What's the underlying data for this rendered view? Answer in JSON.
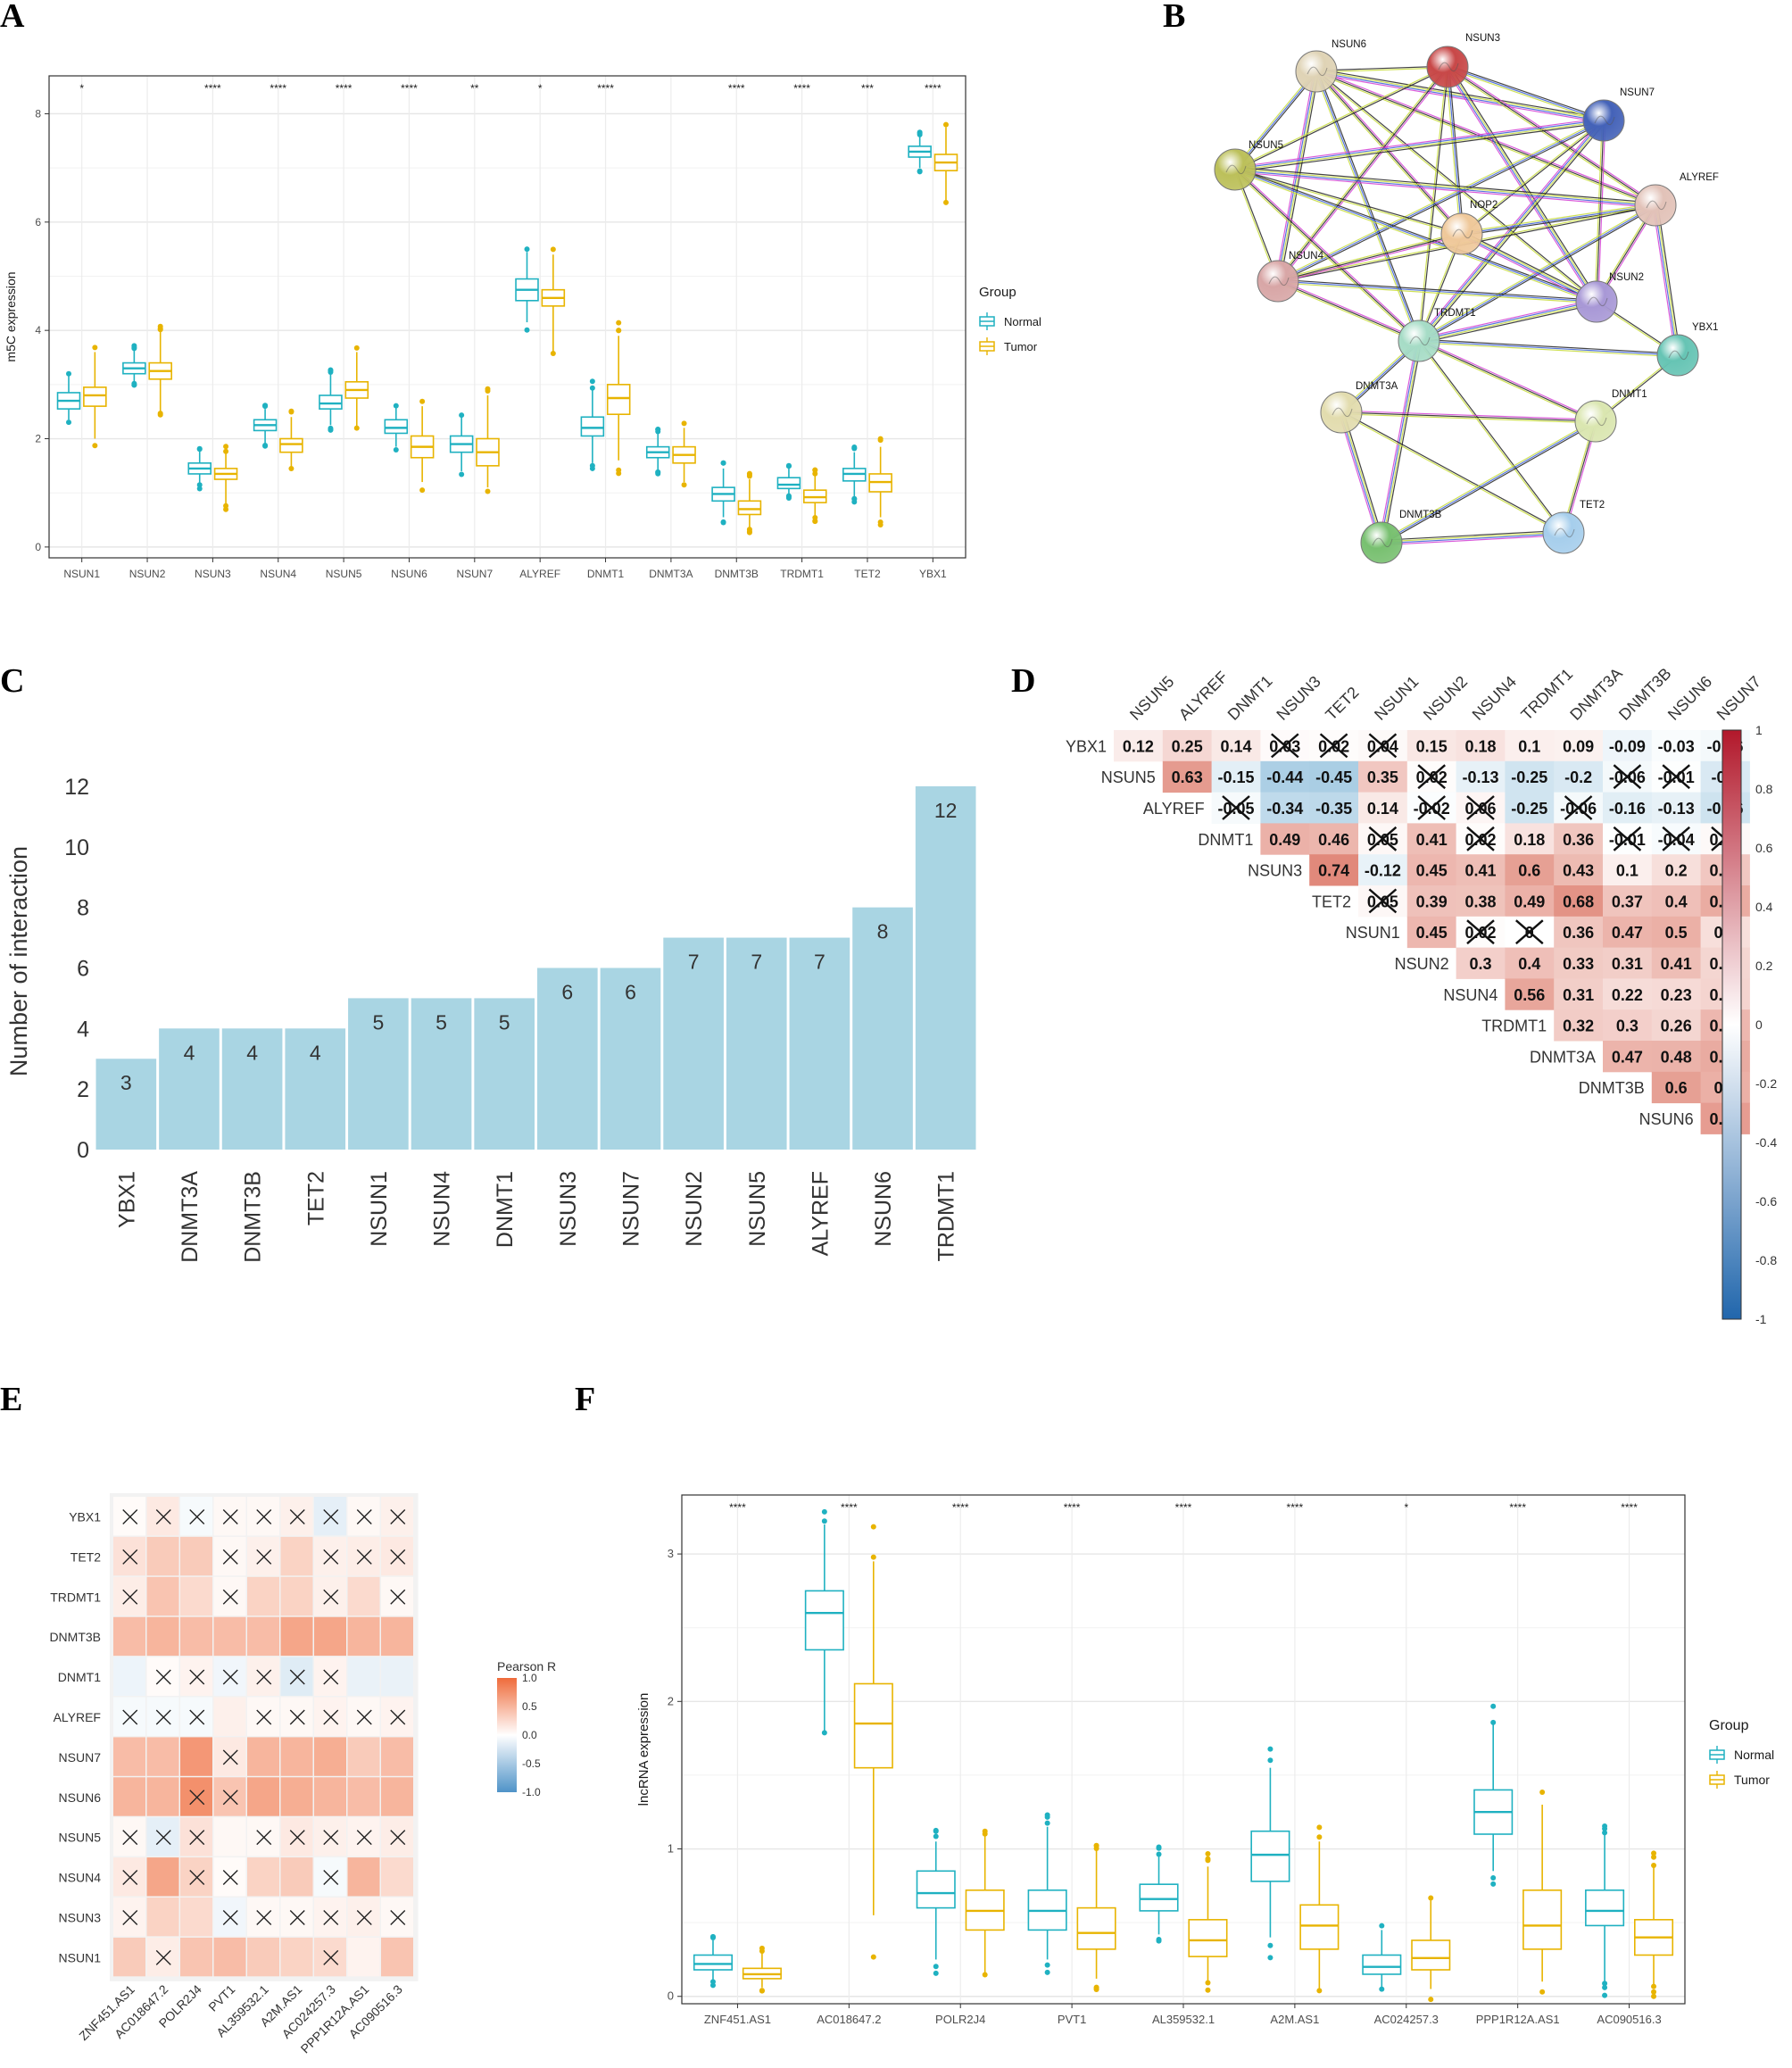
{
  "panels": {
    "A": "A",
    "B": "B",
    "C": "C",
    "D": "D",
    "E": "E",
    "F": "F"
  },
  "colors": {
    "normal": "#1fb1c1",
    "tumor": "#e8b400",
    "bar": "#a9d5e3",
    "corr_pos": "#d6604d",
    "corr_neg": "#4393c3",
    "pearson_pos": "#f4a582",
    "pearson_neg": "#92c5de"
  },
  "chart_data": [
    {
      "id": "A",
      "type": "box",
      "ylabel": "m5C expression",
      "ylim": [
        -0.2,
        8.7
      ],
      "yticks": [
        0,
        2,
        4,
        6,
        8
      ],
      "legend": {
        "title": "Group",
        "items": [
          "Normal",
          "Tumor"
        ],
        "position": "right"
      },
      "categories": [
        "NSUN1",
        "NSUN2",
        "NSUN3",
        "NSUN4",
        "NSUN5",
        "NSUN6",
        "NSUN7",
        "ALYREF",
        "DNMT1",
        "DNMT3A",
        "DNMT3B",
        "TRDMT1",
        "TET2",
        "YBX1"
      ],
      "significance": [
        "*",
        "",
        "****",
        "****",
        "****",
        "****",
        "**",
        "*",
        "****",
        "",
        "****",
        "****",
        "***",
        "****"
      ],
      "series": [
        {
          "name": "Normal",
          "boxes": [
            [
              2.35,
              2.55,
              2.7,
              2.85,
              3.2
            ],
            [
              3.05,
              3.2,
              3.3,
              3.4,
              3.65
            ],
            [
              1.15,
              1.35,
              1.45,
              1.55,
              1.8
            ],
            [
              1.9,
              2.15,
              2.25,
              2.35,
              2.55
            ],
            [
              2.25,
              2.55,
              2.65,
              2.8,
              3.2
            ],
            [
              1.85,
              2.1,
              2.2,
              2.35,
              2.6
            ],
            [
              1.4,
              1.75,
              1.9,
              2.05,
              2.4
            ],
            [
              4.15,
              4.55,
              4.75,
              4.95,
              5.45
            ],
            [
              1.55,
              2.05,
              2.2,
              2.4,
              2.9
            ],
            [
              1.4,
              1.65,
              1.75,
              1.85,
              2.1
            ],
            [
              0.55,
              0.85,
              0.98,
              1.1,
              1.45
            ],
            [
              0.95,
              1.08,
              1.15,
              1.28,
              1.45
            ],
            [
              0.9,
              1.22,
              1.35,
              1.45,
              1.75
            ],
            [
              7.0,
              7.2,
              7.3,
              7.4,
              7.6
            ]
          ]
        },
        {
          "name": "Tumor",
          "boxes": [
            [
              2.0,
              2.6,
              2.8,
              2.95,
              3.6
            ],
            [
              2.5,
              3.1,
              3.25,
              3.4,
              4.0
            ],
            [
              0.8,
              1.25,
              1.35,
              1.45,
              1.75
            ],
            [
              1.45,
              1.75,
              1.9,
              2.0,
              2.4
            ],
            [
              2.2,
              2.75,
              2.9,
              3.05,
              3.6
            ],
            [
              1.2,
              1.65,
              1.85,
              2.05,
              2.6
            ],
            [
              1.1,
              1.5,
              1.75,
              2.0,
              2.8
            ],
            [
              3.6,
              4.45,
              4.6,
              4.75,
              5.4
            ],
            [
              1.6,
              2.45,
              2.75,
              3.0,
              3.9
            ],
            [
              1.2,
              1.55,
              1.7,
              1.85,
              2.2
            ],
            [
              0.35,
              0.6,
              0.7,
              0.85,
              1.25
            ],
            [
              0.55,
              0.82,
              0.92,
              1.05,
              1.35
            ],
            [
              0.55,
              1.02,
              1.2,
              1.35,
              1.85
            ],
            [
              6.4,
              6.95,
              7.1,
              7.25,
              7.75
            ]
          ]
        }
      ]
    },
    {
      "id": "B",
      "type": "network",
      "nodes": [
        {
          "label": "NSUN6",
          "color": "#dfd3b5"
        },
        {
          "label": "NSUN3",
          "color": "#c84848"
        },
        {
          "label": "NSUN7",
          "color": "#4462b8"
        },
        {
          "label": "NSUN5",
          "color": "#bcc05a"
        },
        {
          "label": "ALYREF",
          "color": "#e2c2b8"
        },
        {
          "label": "NOP2",
          "color": "#efc89a"
        },
        {
          "label": "NSUN4",
          "color": "#d8a6a6"
        },
        {
          "label": "NSUN2",
          "color": "#a898d6"
        },
        {
          "label": "TRDMT1",
          "color": "#a6dcc6"
        },
        {
          "label": "YBX1",
          "color": "#66c4b4"
        },
        {
          "label": "DNMT3A",
          "color": "#e2dcae"
        },
        {
          "label": "DNMT1",
          "color": "#dae6b0"
        },
        {
          "label": "DNMT3B",
          "color": "#78c070"
        },
        {
          "label": "TET2",
          "color": "#a6ceec"
        }
      ]
    },
    {
      "id": "C",
      "type": "bar",
      "ylabel": "Number of interaction",
      "ylim": [
        0,
        12.5
      ],
      "yticks": [
        0,
        2,
        4,
        6,
        8,
        10,
        12
      ],
      "categories": [
        "YBX1",
        "DNMT3A",
        "DNMT3B",
        "TET2",
        "NSUN1",
        "NSUN4",
        "DNMT1",
        "NSUN3",
        "NSUN7",
        "NSUN2",
        "NSUN5",
        "ALYREF",
        "NSUN6",
        "TRDMT1"
      ],
      "values": [
        3,
        4,
        4,
        4,
        5,
        5,
        5,
        6,
        6,
        7,
        7,
        7,
        8,
        12
      ]
    },
    {
      "id": "D",
      "type": "heatmap",
      "rows": [
        "YBX1",
        "NSUN5",
        "ALYREF",
        "DNMT1",
        "NSUN3",
        "TET2",
        "NSUN1",
        "NSUN2",
        "NSUN4",
        "TRDMT1",
        "DNMT3A",
        "DNMT3B",
        "NSUN6"
      ],
      "cols": [
        "NSUN5",
        "ALYREF",
        "DNMT1",
        "NSUN3",
        "TET2",
        "NSUN1",
        "NSUN2",
        "NSUN4",
        "TRDMT1",
        "DNMT3A",
        "DNMT3B",
        "NSUN6",
        "NSUN7"
      ],
      "values": [
        [
          0.12,
          0.25,
          0.14,
          0.03,
          0.02,
          0.04,
          0.15,
          0.18,
          0.1,
          0.09,
          -0.09,
          -0.03,
          -0.06
        ],
        [
          null,
          0.63,
          -0.15,
          -0.44,
          -0.45,
          0.35,
          0.02,
          -0.13,
          -0.25,
          -0.2,
          -0.06,
          -0.01,
          -0.2
        ],
        [
          null,
          null,
          -0.05,
          -0.34,
          -0.35,
          0.14,
          -0.02,
          0.06,
          -0.25,
          -0.06,
          -0.16,
          -0.13,
          -0.26
        ],
        [
          null,
          null,
          null,
          0.49,
          0.46,
          0.05,
          0.41,
          0.02,
          0.18,
          0.36,
          -0.01,
          -0.04,
          0.04
        ],
        [
          null,
          null,
          null,
          null,
          0.74,
          -0.12,
          0.45,
          0.41,
          0.6,
          0.43,
          0.1,
          0.2,
          0.35
        ],
        [
          null,
          null,
          null,
          null,
          null,
          0.05,
          0.39,
          0.38,
          0.49,
          0.68,
          0.37,
          0.4,
          0.52
        ],
        [
          null,
          null,
          null,
          null,
          null,
          null,
          0.45,
          0.02,
          0,
          0.36,
          0.47,
          0.5,
          0.2
        ],
        [
          null,
          null,
          null,
          null,
          null,
          null,
          null,
          0.3,
          0.4,
          0.33,
          0.31,
          0.41,
          0.26
        ],
        [
          null,
          null,
          null,
          null,
          null,
          null,
          null,
          null,
          0.56,
          0.31,
          0.22,
          0.23,
          0.27
        ],
        [
          null,
          null,
          null,
          null,
          null,
          null,
          null,
          null,
          null,
          0.32,
          0.3,
          0.26,
          0.45
        ],
        [
          null,
          null,
          null,
          null,
          null,
          null,
          null,
          null,
          null,
          null,
          0.47,
          0.48,
          0.53
        ],
        [
          null,
          null,
          null,
          null,
          null,
          null,
          null,
          null,
          null,
          null,
          null,
          0.6,
          0.5
        ],
        [
          null,
          null,
          null,
          null,
          null,
          null,
          null,
          null,
          null,
          null,
          null,
          null,
          0.62
        ]
      ],
      "crossed": [
        [
          0,
          3
        ],
        [
          0,
          4
        ],
        [
          0,
          5
        ],
        [
          1,
          6
        ],
        [
          1,
          10
        ],
        [
          1,
          11
        ],
        [
          2,
          2
        ],
        [
          2,
          6
        ],
        [
          2,
          7
        ],
        [
          2,
          9
        ],
        [
          3,
          5
        ],
        [
          3,
          7
        ],
        [
          3,
          10
        ],
        [
          3,
          11
        ],
        [
          3,
          12
        ],
        [
          5,
          5
        ],
        [
          6,
          7
        ],
        [
          6,
          8
        ]
      ],
      "colorbar": {
        "ticks": [
          "1",
          "0.8",
          "0.6",
          "0.4",
          "0.2",
          "0",
          "-0.2",
          "-0.4",
          "-0.6",
          "-0.8",
          "-1"
        ]
      }
    },
    {
      "id": "E",
      "type": "heatmap",
      "rows": [
        "YBX1",
        "TET2",
        "TRDMT1",
        "DNMT3B",
        "DNMT1",
        "ALYREF",
        "NSUN7",
        "NSUN6",
        "NSUN5",
        "NSUN4",
        "NSUN3",
        "NSUN1"
      ],
      "cols": [
        "ZNF451.AS1",
        "AC018647.2",
        "POLR2J4",
        "PVT1",
        "AL359532.1",
        "A2M.AS1",
        "AC024257.3",
        "PPP1R12A.AS1",
        "AC090516.3"
      ],
      "values": [
        [
          0.03,
          0.15,
          -0.05,
          0.05,
          0.05,
          0.1,
          -0.15,
          0.05,
          0.1
        ],
        [
          0.2,
          0.35,
          0.35,
          0.05,
          0.1,
          0.3,
          0.1,
          0.12,
          0.15
        ],
        [
          0.12,
          0.4,
          0.25,
          0.05,
          0.3,
          0.3,
          0.1,
          0.25,
          0.05
        ],
        [
          0.45,
          0.5,
          0.45,
          0.45,
          0.45,
          0.6,
          0.6,
          0.5,
          0.5
        ],
        [
          -0.1,
          0.03,
          0.08,
          -0.08,
          0.1,
          -0.18,
          0.08,
          -0.12,
          -0.12
        ],
        [
          -0.05,
          -0.05,
          -0.05,
          0.1,
          0.05,
          0.05,
          0.08,
          0.05,
          0.08
        ],
        [
          0.45,
          0.45,
          0.7,
          0.15,
          0.5,
          0.5,
          0.55,
          0.35,
          0.45
        ],
        [
          0.5,
          0.5,
          0.75,
          0.4,
          0.6,
          0.55,
          0.5,
          0.45,
          0.5
        ],
        [
          0.05,
          -0.15,
          0.2,
          0.05,
          0.05,
          0.15,
          0.1,
          0.08,
          0.12
        ],
        [
          0.15,
          0.6,
          0.3,
          0.03,
          0.3,
          0.35,
          -0.05,
          0.5,
          0.25
        ],
        [
          0.08,
          0.3,
          0.25,
          -0.08,
          0.05,
          0.05,
          0.08,
          0.1,
          0.05
        ],
        [
          0.35,
          0.12,
          0.4,
          0.45,
          0.35,
          0.3,
          0.25,
          0.08,
          0.4
        ]
      ],
      "crossed": [
        [
          0,
          0
        ],
        [
          0,
          1
        ],
        [
          0,
          2
        ],
        [
          0,
          3
        ],
        [
          0,
          4
        ],
        [
          0,
          5
        ],
        [
          0,
          6
        ],
        [
          0,
          7
        ],
        [
          0,
          8
        ],
        [
          1,
          0
        ],
        [
          1,
          3
        ],
        [
          1,
          4
        ],
        [
          1,
          6
        ],
        [
          1,
          7
        ],
        [
          1,
          8
        ],
        [
          2,
          0
        ],
        [
          2,
          3
        ],
        [
          2,
          6
        ],
        [
          2,
          8
        ],
        [
          4,
          1
        ],
        [
          4,
          2
        ],
        [
          4,
          3
        ],
        [
          4,
          4
        ],
        [
          4,
          5
        ],
        [
          4,
          6
        ],
        [
          5,
          0
        ],
        [
          5,
          1
        ],
        [
          5,
          2
        ],
        [
          5,
          4
        ],
        [
          5,
          5
        ],
        [
          5,
          6
        ],
        [
          5,
          7
        ],
        [
          5,
          8
        ],
        [
          6,
          3
        ],
        [
          7,
          2
        ],
        [
          7,
          3
        ],
        [
          8,
          0
        ],
        [
          8,
          1
        ],
        [
          8,
          2
        ],
        [
          8,
          4
        ],
        [
          8,
          5
        ],
        [
          8,
          6
        ],
        [
          8,
          7
        ],
        [
          8,
          8
        ],
        [
          9,
          0
        ],
        [
          9,
          2
        ],
        [
          9,
          3
        ],
        [
          9,
          6
        ],
        [
          10,
          0
        ],
        [
          10,
          3
        ],
        [
          10,
          4
        ],
        [
          10,
          5
        ],
        [
          10,
          6
        ],
        [
          10,
          7
        ],
        [
          10,
          8
        ],
        [
          11,
          1
        ],
        [
          11,
          6
        ]
      ],
      "legend": {
        "title": "Pearson R",
        "ticks": [
          "1.0",
          "0.5",
          "0.0",
          "-0.5",
          "-1.0"
        ]
      }
    },
    {
      "id": "F",
      "type": "box",
      "ylabel": "lncRNA expression",
      "ylim": [
        -0.05,
        3.4
      ],
      "yticks": [
        0,
        1,
        2,
        3
      ],
      "legend": {
        "title": "Group",
        "items": [
          "Normal",
          "Tumor"
        ],
        "position": "right"
      },
      "categories": [
        "ZNF451.AS1",
        "AC018647.2",
        "POLR2J4",
        "PVT1",
        "AL359532.1",
        "A2M.AS1",
        "AC024257.3",
        "PPP1R12A.AS1",
        "AC090516.3"
      ],
      "significance": [
        "****",
        "****",
        "****",
        "****",
        "****",
        "****",
        "*",
        "****",
        "****"
      ],
      "series": [
        {
          "name": "Normal",
          "boxes": [
            [
              0.1,
              0.18,
              0.22,
              0.28,
              0.38
            ],
            [
              1.8,
              2.35,
              2.6,
              2.75,
              3.2
            ],
            [
              0.25,
              0.6,
              0.7,
              0.85,
              1.05
            ],
            [
              0.25,
              0.45,
              0.58,
              0.72,
              1.15
            ],
            [
              0.42,
              0.58,
              0.66,
              0.76,
              0.95
            ],
            [
              0.4,
              0.78,
              0.96,
              1.12,
              1.55
            ],
            [
              0.05,
              0.15,
              0.2,
              0.28,
              0.45
            ],
            [
              0.85,
              1.1,
              1.25,
              1.4,
              1.85
            ],
            [
              0.1,
              0.48,
              0.58,
              0.72,
              1.1
            ]
          ]
        },
        {
          "name": "Tumor",
          "boxes": [
            [
              0.06,
              0.12,
              0.15,
              0.19,
              0.3
            ],
            [
              0.55,
              1.55,
              1.85,
              2.12,
              2.95
            ],
            [
              0.15,
              0.45,
              0.58,
              0.72,
              1.1
            ],
            [
              0.12,
              0.32,
              0.43,
              0.6,
              1.0
            ],
            [
              0.1,
              0.27,
              0.38,
              0.52,
              0.88
            ],
            [
              0.05,
              0.32,
              0.48,
              0.62,
              1.05
            ],
            [
              0.05,
              0.18,
              0.26,
              0.38,
              0.65
            ],
            [
              0.1,
              0.32,
              0.48,
              0.72,
              1.3
            ],
            [
              0.08,
              0.28,
              0.4,
              0.52,
              0.88
            ]
          ]
        }
      ]
    }
  ]
}
